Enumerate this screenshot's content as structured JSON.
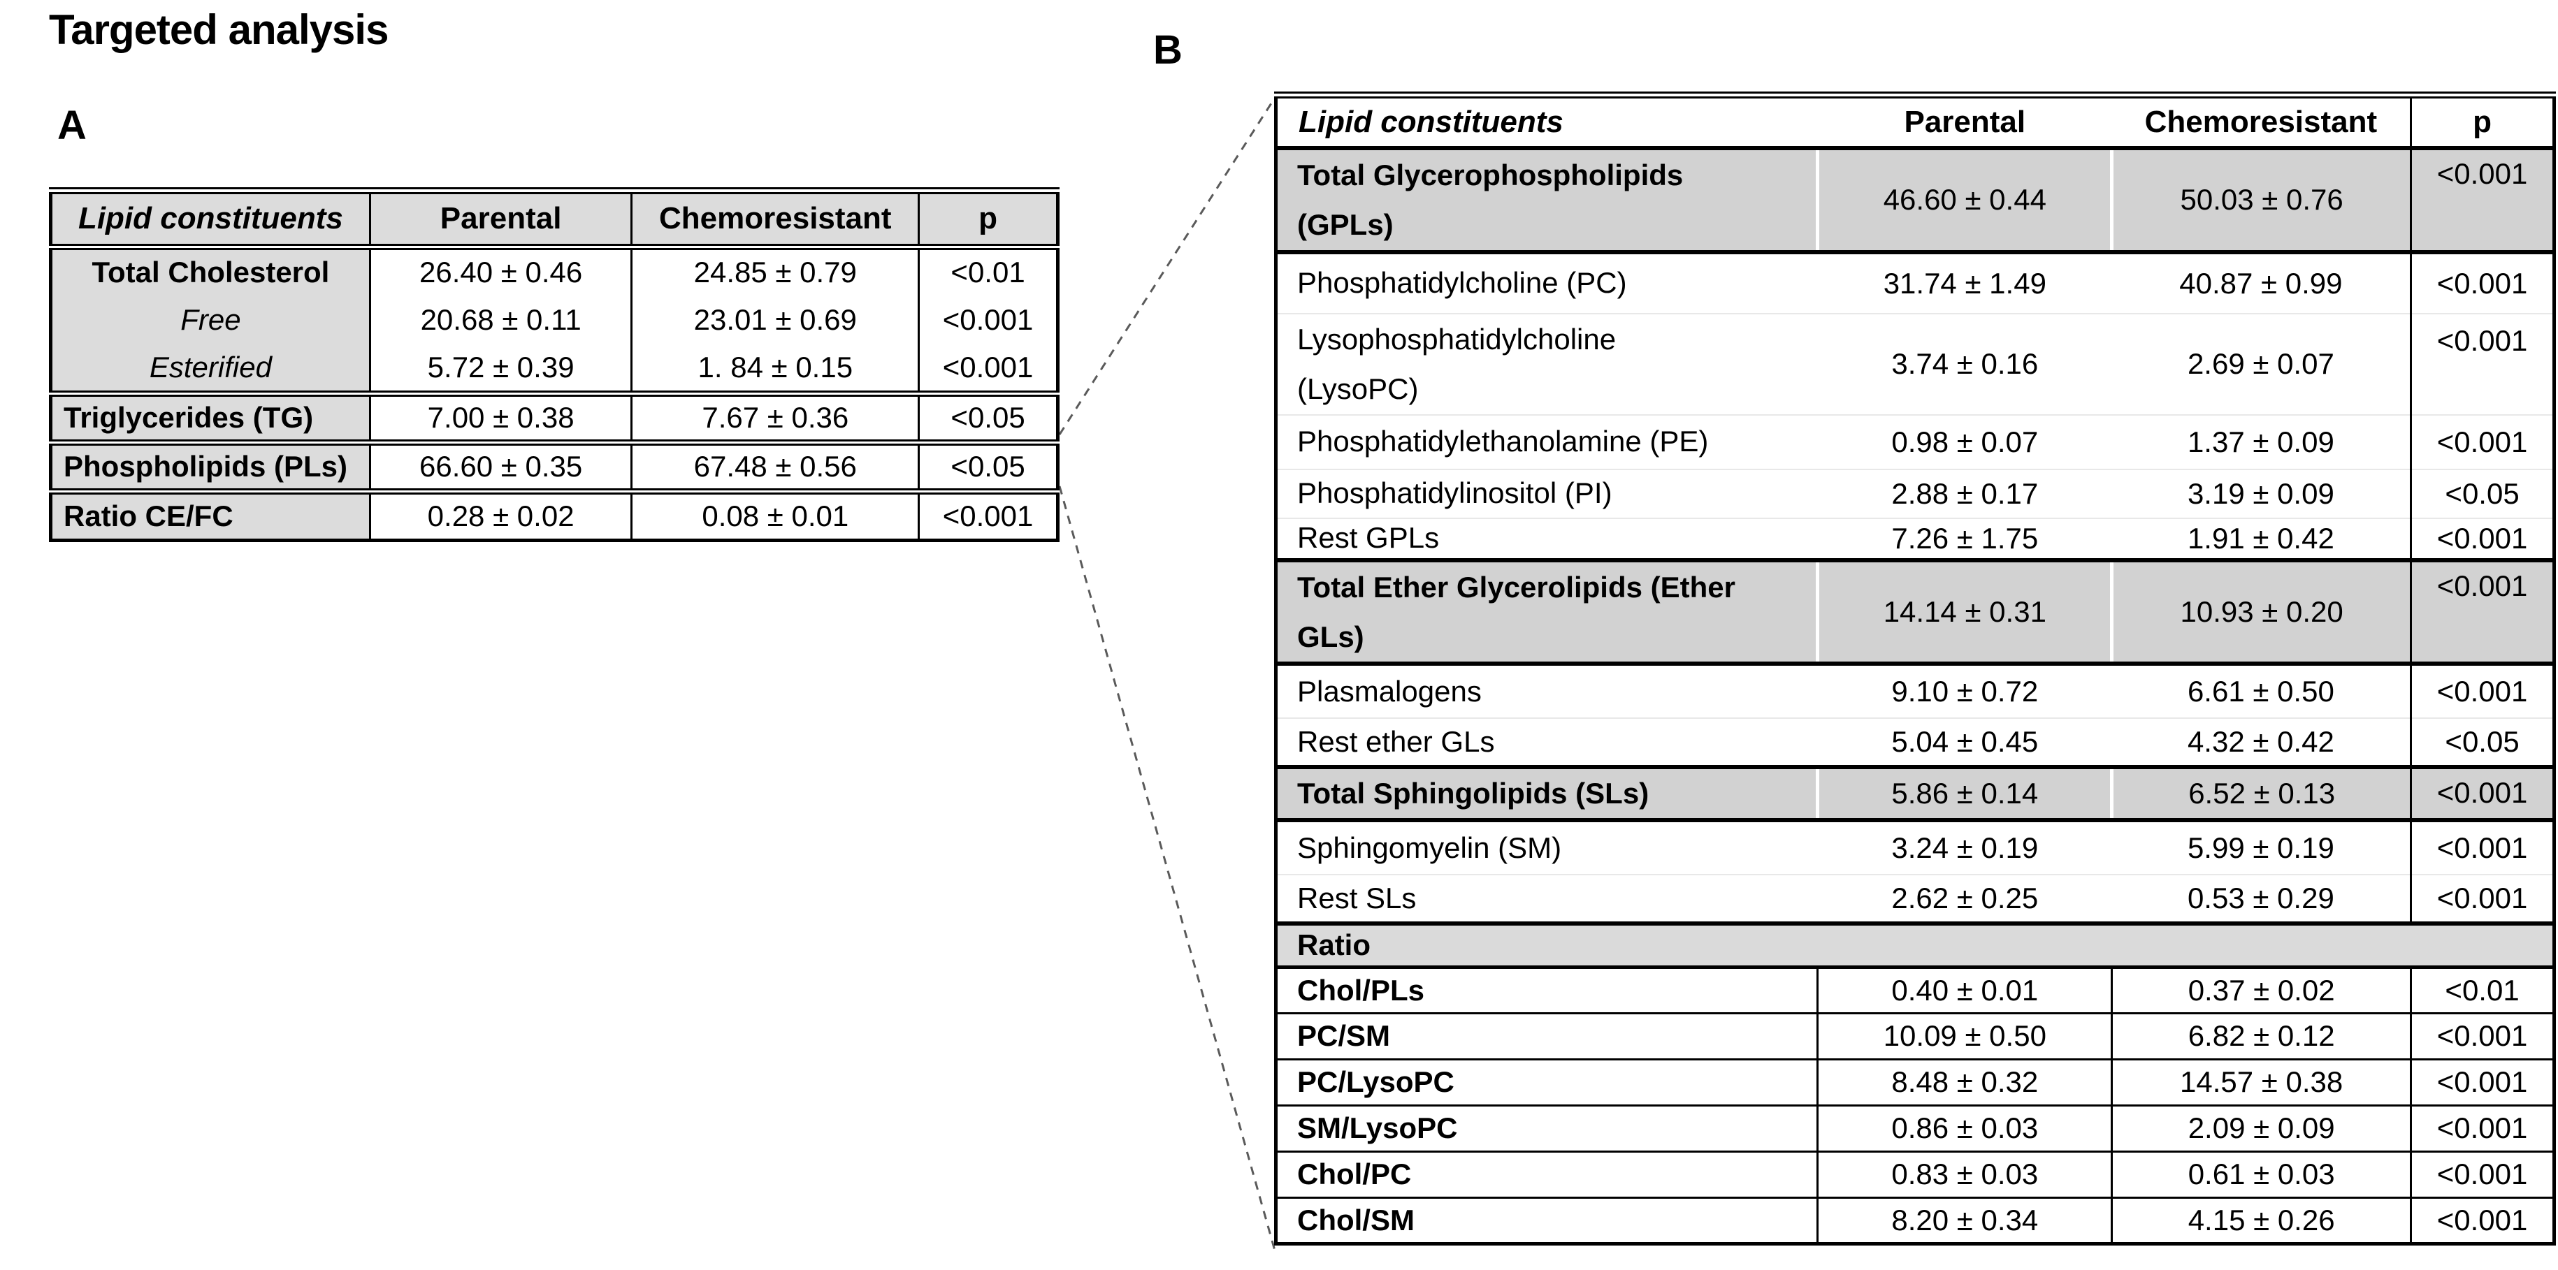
{
  "title": "Targeted analysis",
  "colors": {
    "border": "#000000",
    "header_fill": "#dcdcdc",
    "total_row_fill": "#d2d2d2",
    "section_row_fill": "#dadada",
    "connector": "#5a5a5a"
  },
  "panel_a": {
    "label": "A",
    "columns": [
      "Lipid constituents",
      "Parental",
      "Chemoresistant",
      "p"
    ],
    "rows": [
      {
        "name": "Total Cholesterol",
        "parental": "26.40 ± 0.46",
        "chemoresistant": "24.85 ± 0.79",
        "p": "<0.01",
        "emphasis": "bold",
        "align": "center",
        "section_start": true
      },
      {
        "name": "Free",
        "parental": "20.68 ± 0.11",
        "chemoresistant": "23.01 ± 0.69",
        "p": "<0.001",
        "emphasis": "italic",
        "align": "center",
        "section_start": false
      },
      {
        "name": "Esterified",
        "parental": "5.72 ± 0.39",
        "chemoresistant": "1. 84 ± 0.15",
        "p": "<0.001",
        "emphasis": "italic",
        "align": "center",
        "section_start": false
      },
      {
        "name": "Triglycerides (TG)",
        "parental": "7.00 ± 0.38",
        "chemoresistant": "7.67 ± 0.36",
        "p": "<0.05",
        "emphasis": "bold",
        "align": "left",
        "section_start": true
      },
      {
        "name": "Phospholipids (PLs)",
        "parental": "66.60 ± 0.35",
        "chemoresistant": "67.48 ± 0.56",
        "p": "<0.05",
        "emphasis": "bold",
        "align": "left",
        "section_start": true
      },
      {
        "name": "Ratio CE/FC",
        "parental": "0.28 ± 0.02",
        "chemoresistant": "0.08 ± 0.01",
        "p": "<0.001",
        "emphasis": "bold",
        "align": "left",
        "section_start": true
      }
    ]
  },
  "panel_b": {
    "label": "B",
    "columns": [
      "Lipid constituents",
      "Parental",
      "Chemoresistant",
      "p"
    ],
    "rows": [
      {
        "name": "Total Glycerophospholipids\n(GPLs)",
        "variant": "total",
        "parental": "46.60 ± 0.44",
        "chemoresistant": "50.03 ± 0.76",
        "p": "<0.001"
      },
      {
        "name": "Phosphatidylcholine (PC)",
        "variant": "sub",
        "parental": "31.74 ± 1.49",
        "chemoresistant": "40.87 ± 0.99",
        "p": "<0.001"
      },
      {
        "name": "Lysophosphatidylcholine\n(LysoPC)",
        "variant": "sub",
        "parental": "3.74 ± 0.16",
        "chemoresistant": "2.69 ± 0.07",
        "p": "<0.001"
      },
      {
        "name": "Phosphatidylethanolamine (PE)",
        "variant": "sub",
        "parental": "0.98 ± 0.07",
        "chemoresistant": "1.37 ± 0.09",
        "p": "<0.001"
      },
      {
        "name": "Phosphatidylinositol (PI)",
        "variant": "sub",
        "parental": "2.88  ± 0.17",
        "chemoresistant": "3.19 ± 0.09",
        "p": "<0.05"
      },
      {
        "name": "Rest GPLs",
        "variant": "sub",
        "parental": "7.26 ± 1.75",
        "chemoresistant": "1.91 ± 0.42",
        "p": "<0.001"
      },
      {
        "name": "Total Ether Glycerolipids (Ether\nGLs)",
        "variant": "total",
        "parental": "14.14 ± 0.31",
        "chemoresistant": "10.93 ± 0.20",
        "p": "<0.001"
      },
      {
        "name": "Plasmalogens",
        "variant": "sub",
        "parental": "9.10 ± 0.72",
        "chemoresistant": "6.61 ± 0.50",
        "p": "<0.001"
      },
      {
        "name": "Rest ether GLs",
        "variant": "sub",
        "parental": "5.04 ± 0.45",
        "chemoresistant": "4.32 ± 0.42",
        "p": "<0.05"
      },
      {
        "name": "Total Sphingolipids (SLs)",
        "variant": "total",
        "parental": "5.86 ± 0.14",
        "chemoresistant": "6.52 ± 0.13",
        "p": "<0.001"
      },
      {
        "name": "Sphingomyelin (SM)",
        "variant": "sub",
        "parental": "3.24 ± 0.19",
        "chemoresistant": "5.99 ± 0.19",
        "p": "<0.001"
      },
      {
        "name": "Rest SLs",
        "variant": "sub",
        "parental": "2.62 ± 0.25",
        "chemoresistant": "0.53 ± 0.29",
        "p": "<0.001"
      },
      {
        "name": "Ratio",
        "variant": "section"
      },
      {
        "name": "Chol/PLs",
        "variant": "ratio",
        "parental": "0.40 ± 0.01",
        "chemoresistant": "0.37 ± 0.02",
        "p": "<0.01"
      },
      {
        "name": "PC/SM",
        "variant": "ratio",
        "parental": "10.09 ± 0.50",
        "chemoresistant": "6.82 ± 0.12",
        "p": "<0.001"
      },
      {
        "name": "PC/LysoPC",
        "variant": "ratio",
        "parental": "8.48 ± 0.32",
        "chemoresistant": "14.57 ± 0.38",
        "p": "<0.001"
      },
      {
        "name": "SM/LysoPC",
        "variant": "ratio",
        "parental": "0.86 ± 0.03",
        "chemoresistant": "2.09 ± 0.09",
        "p": "<0.001"
      },
      {
        "name": "Chol/PC",
        "variant": "ratio",
        "parental": "0.83 ± 0.03",
        "chemoresistant": "0.61 ± 0.03",
        "p": "<0.001"
      },
      {
        "name": "Chol/SM",
        "variant": "ratio",
        "parental": "8.20 ± 0.34",
        "chemoresistant": "4.15 ± 0.26",
        "p": "<0.001"
      }
    ]
  }
}
